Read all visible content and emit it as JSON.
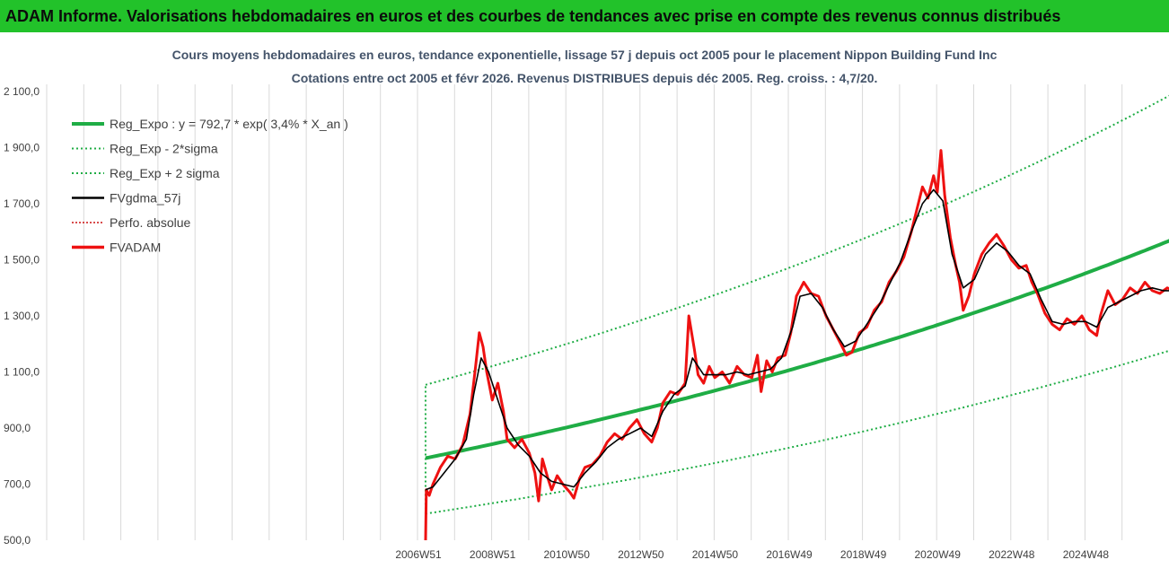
{
  "banner": {
    "text": "ADAM Informe. Valorisations hebdomadaires en euros et des courbes de tendances avec prise en compte des revenus connus distribués"
  },
  "colors": {
    "banner": "#22c22a",
    "trend": "#1fad45",
    "band": "#1fad45",
    "smooth": "#000000",
    "price": "#ee1111",
    "perfo": "#cc1111",
    "grid": "#d9d9d9"
  },
  "chart_data": {
    "type": "line",
    "title": "Cours moyens hebdomadaires en euros, tendance exponentielle, lissage 57 j depuis oct 2005 pour le placement Nippon Building Fund Inc",
    "subtitle": "Cotations entre oct 2005 et févr 2026. Revenus DISTRIBUES depuis déc 2005. Reg. croiss. : 4,7/20.",
    "ylim": [
      500,
      2100
    ],
    "y_ticks": [
      "500,0",
      "700,0",
      "900,0",
      "1 100,0",
      "1 300,0",
      "1 500,0",
      "1 700,0",
      "1 900,0",
      "2 100,0"
    ],
    "x_ticks": [
      "2006W51",
      "2008W51",
      "2010W50",
      "2012W50",
      "2014W50",
      "2016W49",
      "2018W49",
      "2020W49",
      "2022W48",
      "2024W48"
    ],
    "x_range": [
      2005.8,
      2026.1
    ],
    "grid": "vertical",
    "legend_position": "top-left",
    "legend": [
      "Reg_Expo : y = 792,7 * exp( 3,4% *  X_an )",
      "Reg_Exp - 2*sigma",
      "Reg_Exp + 2 sigma",
      "FVgdma_57j",
      "Perfo. absolue",
      "FVADAM"
    ],
    "regression": {
      "a": 792.7,
      "b": 0.034,
      "start": 2005.8,
      "end": 2026.1,
      "low_factor": 0.75,
      "high_factor": 1.33
    },
    "series": [
      {
        "name": "FVADAM",
        "points": [
          [
            2005.8,
            500
          ],
          [
            2005.82,
            680
          ],
          [
            2005.9,
            660
          ],
          [
            2006.0,
            700
          ],
          [
            2006.2,
            760
          ],
          [
            2006.4,
            800
          ],
          [
            2006.6,
            790
          ],
          [
            2006.8,
            840
          ],
          [
            2007.0,
            950
          ],
          [
            2007.15,
            1120
          ],
          [
            2007.25,
            1240
          ],
          [
            2007.35,
            1190
          ],
          [
            2007.45,
            1100
          ],
          [
            2007.6,
            1000
          ],
          [
            2007.75,
            1060
          ],
          [
            2007.9,
            960
          ],
          [
            2008.0,
            860
          ],
          [
            2008.2,
            830
          ],
          [
            2008.4,
            860
          ],
          [
            2008.6,
            810
          ],
          [
            2008.75,
            740
          ],
          [
            2008.85,
            640
          ],
          [
            2008.95,
            790
          ],
          [
            2009.1,
            720
          ],
          [
            2009.2,
            680
          ],
          [
            2009.35,
            730
          ],
          [
            2009.5,
            700
          ],
          [
            2009.7,
            670
          ],
          [
            2009.8,
            650
          ],
          [
            2009.95,
            720
          ],
          [
            2010.1,
            760
          ],
          [
            2010.3,
            770
          ],
          [
            2010.5,
            800
          ],
          [
            2010.7,
            850
          ],
          [
            2010.9,
            880
          ],
          [
            2011.1,
            860
          ],
          [
            2011.3,
            900
          ],
          [
            2011.5,
            930
          ],
          [
            2011.7,
            880
          ],
          [
            2011.9,
            850
          ],
          [
            2012.05,
            900
          ],
          [
            2012.2,
            990
          ],
          [
            2012.4,
            1030
          ],
          [
            2012.6,
            1020
          ],
          [
            2012.8,
            1060
          ],
          [
            2012.9,
            1300
          ],
          [
            2013.05,
            1180
          ],
          [
            2013.15,
            1090
          ],
          [
            2013.3,
            1060
          ],
          [
            2013.45,
            1120
          ],
          [
            2013.6,
            1080
          ],
          [
            2013.8,
            1100
          ],
          [
            2014.0,
            1060
          ],
          [
            2014.2,
            1120
          ],
          [
            2014.4,
            1090
          ],
          [
            2014.6,
            1080
          ],
          [
            2014.75,
            1160
          ],
          [
            2014.85,
            1030
          ],
          [
            2015.0,
            1140
          ],
          [
            2015.15,
            1100
          ],
          [
            2015.3,
            1150
          ],
          [
            2015.5,
            1160
          ],
          [
            2015.65,
            1240
          ],
          [
            2015.8,
            1370
          ],
          [
            2016.0,
            1420
          ],
          [
            2016.2,
            1380
          ],
          [
            2016.4,
            1370
          ],
          [
            2016.6,
            1300
          ],
          [
            2016.8,
            1250
          ],
          [
            2017.0,
            1200
          ],
          [
            2017.15,
            1160
          ],
          [
            2017.3,
            1170
          ],
          [
            2017.5,
            1240
          ],
          [
            2017.7,
            1260
          ],
          [
            2017.9,
            1320
          ],
          [
            2018.1,
            1350
          ],
          [
            2018.3,
            1420
          ],
          [
            2018.5,
            1460
          ],
          [
            2018.7,
            1510
          ],
          [
            2018.9,
            1600
          ],
          [
            2019.05,
            1680
          ],
          [
            2019.2,
            1760
          ],
          [
            2019.35,
            1720
          ],
          [
            2019.5,
            1800
          ],
          [
            2019.6,
            1740
          ],
          [
            2019.7,
            1890
          ],
          [
            2019.8,
            1730
          ],
          [
            2019.95,
            1580
          ],
          [
            2020.1,
            1480
          ],
          [
            2020.2,
            1420
          ],
          [
            2020.3,
            1320
          ],
          [
            2020.45,
            1370
          ],
          [
            2020.6,
            1450
          ],
          [
            2020.8,
            1520
          ],
          [
            2021.0,
            1560
          ],
          [
            2021.2,
            1590
          ],
          [
            2021.4,
            1550
          ],
          [
            2021.6,
            1500
          ],
          [
            2021.8,
            1470
          ],
          [
            2022.0,
            1480
          ],
          [
            2022.15,
            1420
          ],
          [
            2022.3,
            1380
          ],
          [
            2022.5,
            1310
          ],
          [
            2022.7,
            1270
          ],
          [
            2022.9,
            1250
          ],
          [
            2023.1,
            1290
          ],
          [
            2023.3,
            1270
          ],
          [
            2023.5,
            1300
          ],
          [
            2023.7,
            1250
          ],
          [
            2023.9,
            1230
          ],
          [
            2024.0,
            1300
          ],
          [
            2024.2,
            1390
          ],
          [
            2024.4,
            1340
          ],
          [
            2024.6,
            1360
          ],
          [
            2024.8,
            1400
          ],
          [
            2025.0,
            1380
          ],
          [
            2025.2,
            1420
          ],
          [
            2025.4,
            1390
          ],
          [
            2025.6,
            1380
          ],
          [
            2025.8,
            1400
          ],
          [
            2026.0,
            1390
          ]
        ]
      },
      {
        "name": "FVgdma_57j",
        "points": [
          [
            2005.8,
            680
          ],
          [
            2006.0,
            690
          ],
          [
            2006.3,
            740
          ],
          [
            2006.6,
            790
          ],
          [
            2006.9,
            860
          ],
          [
            2007.1,
            1020
          ],
          [
            2007.3,
            1150
          ],
          [
            2007.5,
            1100
          ],
          [
            2007.7,
            1020
          ],
          [
            2008.0,
            900
          ],
          [
            2008.3,
            840
          ],
          [
            2008.6,
            800
          ],
          [
            2008.9,
            740
          ],
          [
            2009.2,
            710
          ],
          [
            2009.5,
            700
          ],
          [
            2009.8,
            690
          ],
          [
            2010.1,
            740
          ],
          [
            2010.4,
            780
          ],
          [
            2010.7,
            830
          ],
          [
            2011.0,
            860
          ],
          [
            2011.3,
            880
          ],
          [
            2011.6,
            900
          ],
          [
            2011.9,
            870
          ],
          [
            2012.2,
            960
          ],
          [
            2012.5,
            1020
          ],
          [
            2012.8,
            1050
          ],
          [
            2013.0,
            1150
          ],
          [
            2013.3,
            1090
          ],
          [
            2013.6,
            1090
          ],
          [
            2013.9,
            1090
          ],
          [
            2014.2,
            1100
          ],
          [
            2014.5,
            1090
          ],
          [
            2014.8,
            1100
          ],
          [
            2015.1,
            1110
          ],
          [
            2015.4,
            1150
          ],
          [
            2015.7,
            1260
          ],
          [
            2015.9,
            1370
          ],
          [
            2016.2,
            1380
          ],
          [
            2016.5,
            1330
          ],
          [
            2016.8,
            1250
          ],
          [
            2017.1,
            1190
          ],
          [
            2017.4,
            1210
          ],
          [
            2017.7,
            1270
          ],
          [
            2018.0,
            1330
          ],
          [
            2018.3,
            1410
          ],
          [
            2018.6,
            1490
          ],
          [
            2018.9,
            1600
          ],
          [
            2019.2,
            1700
          ],
          [
            2019.5,
            1750
          ],
          [
            2019.75,
            1710
          ],
          [
            2020.0,
            1520
          ],
          [
            2020.3,
            1400
          ],
          [
            2020.6,
            1430
          ],
          [
            2020.9,
            1520
          ],
          [
            2021.2,
            1560
          ],
          [
            2021.5,
            1530
          ],
          [
            2021.8,
            1480
          ],
          [
            2022.1,
            1450
          ],
          [
            2022.4,
            1360
          ],
          [
            2022.7,
            1280
          ],
          [
            2023.0,
            1270
          ],
          [
            2023.3,
            1280
          ],
          [
            2023.6,
            1280
          ],
          [
            2023.9,
            1260
          ],
          [
            2024.2,
            1330
          ],
          [
            2024.5,
            1350
          ],
          [
            2024.8,
            1370
          ],
          [
            2025.1,
            1390
          ],
          [
            2025.4,
            1400
          ],
          [
            2025.7,
            1390
          ],
          [
            2026.0,
            1390
          ]
        ]
      }
    ]
  }
}
